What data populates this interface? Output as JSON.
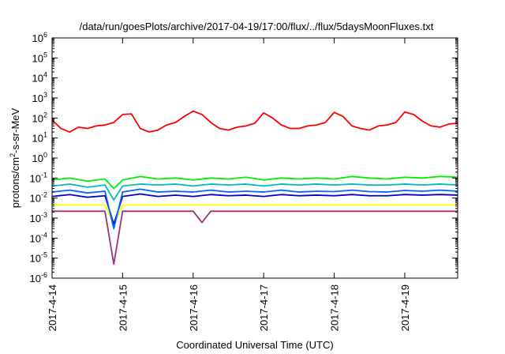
{
  "chart_data": {
    "type": "line",
    "title": "/data/run/goesPlots/archive/2017-04-19/17:00/flux/../flux/5daysMoonFluxes.txt",
    "xlabel": "Coordinated Universal Time (UTC)",
    "ylabel_parts": [
      "protons/cm",
      "2",
      "-s-sr-MeV"
    ],
    "ylabel": "protons/cm2-s-sr-MeV",
    "x_range": [
      "2017-04-14",
      "2017-04-19 18:00"
    ],
    "x_ticks": [
      "2017-4-14",
      "2017-4-15",
      "2017-4-16",
      "2017-4-17",
      "2017-4-18",
      "2017-4-19"
    ],
    "y_scale": "log",
    "ylim": [
      1e-06,
      1000000.0
    ],
    "y_ticks": [
      {
        "base": "10",
        "exp": "6"
      },
      {
        "base": "10",
        "exp": "5"
      },
      {
        "base": "10",
        "exp": "4"
      },
      {
        "base": "10",
        "exp": "3"
      },
      {
        "base": "10",
        "exp": "2"
      },
      {
        "base": "10",
        "exp": "1"
      },
      {
        "base": "10",
        "exp": "0"
      },
      {
        "base": "10",
        "exp": "-1"
      },
      {
        "base": "10",
        "exp": "-2"
      },
      {
        "base": "10",
        "exp": "-3"
      },
      {
        "base": "10",
        "exp": "-4"
      },
      {
        "base": "10",
        "exp": "-5"
      },
      {
        "base": "10",
        "exp": "-6"
      }
    ],
    "grid": false,
    "legend": false,
    "series": [
      {
        "color": "#ff0000",
        "x": [
          "2017-04-14 00:00",
          "2017-04-14 03:00",
          "2017-04-14 06:00",
          "2017-04-14 09:00",
          "2017-04-14 12:00",
          "2017-04-14 15:00",
          "2017-04-14 18:00",
          "2017-04-14 21:00",
          "2017-04-15 00:00",
          "2017-04-15 03:00",
          "2017-04-15 06:00",
          "2017-04-15 09:00",
          "2017-04-15 12:00",
          "2017-04-15 15:00",
          "2017-04-15 18:00",
          "2017-04-15 21:00",
          "2017-04-16 00:00",
          "2017-04-16 03:00",
          "2017-04-16 06:00",
          "2017-04-16 09:00",
          "2017-04-16 12:00",
          "2017-04-16 15:00",
          "2017-04-16 18:00",
          "2017-04-16 21:00",
          "2017-04-17 00:00",
          "2017-04-17 03:00",
          "2017-04-17 06:00",
          "2017-04-17 09:00",
          "2017-04-17 12:00",
          "2017-04-17 15:00",
          "2017-04-17 18:00",
          "2017-04-17 21:00",
          "2017-04-18 00:00",
          "2017-04-18 03:00",
          "2017-04-18 06:00",
          "2017-04-18 09:00",
          "2017-04-18 12:00",
          "2017-04-18 15:00",
          "2017-04-18 18:00",
          "2017-04-18 21:00",
          "2017-04-19 00:00",
          "2017-04-19 03:00",
          "2017-04-19 06:00",
          "2017-04-19 09:00",
          "2017-04-19 12:00",
          "2017-04-19 15:00",
          "2017-04-19 18:00"
        ],
        "values": [
          80,
          30,
          20,
          35,
          30,
          40,
          45,
          60,
          150,
          160,
          30,
          20,
          25,
          45,
          60,
          120,
          220,
          150,
          60,
          30,
          25,
          35,
          40,
          55,
          180,
          100,
          45,
          30,
          30,
          40,
          45,
          60,
          190,
          120,
          40,
          30,
          25,
          40,
          45,
          60,
          200,
          150,
          70,
          40,
          35,
          50,
          55
        ]
      },
      {
        "color": "#00ee00",
        "x": [
          "2017-04-14 00:00",
          "2017-04-14 06:00",
          "2017-04-14 12:00",
          "2017-04-14 18:00",
          "2017-04-14 21:00",
          "2017-04-15 00:00",
          "2017-04-15 06:00",
          "2017-04-15 12:00",
          "2017-04-15 18:00",
          "2017-04-16 00:00",
          "2017-04-16 06:00",
          "2017-04-16 12:00",
          "2017-04-16 18:00",
          "2017-04-17 00:00",
          "2017-04-17 06:00",
          "2017-04-17 12:00",
          "2017-04-17 18:00",
          "2017-04-18 00:00",
          "2017-04-18 06:00",
          "2017-04-18 12:00",
          "2017-04-18 18:00",
          "2017-04-19 00:00",
          "2017-04-19 06:00",
          "2017-04-19 12:00",
          "2017-04-19 18:00"
        ],
        "values": [
          0.08,
          0.1,
          0.07,
          0.09,
          0.03,
          0.08,
          0.12,
          0.09,
          0.1,
          0.08,
          0.1,
          0.09,
          0.11,
          0.08,
          0.1,
          0.09,
          0.1,
          0.09,
          0.12,
          0.1,
          0.09,
          0.11,
          0.1,
          0.12,
          0.11
        ]
      },
      {
        "color": "#00bbbb",
        "x": [
          "2017-04-14 00:00",
          "2017-04-14 06:00",
          "2017-04-14 12:00",
          "2017-04-14 18:00",
          "2017-04-14 21:00",
          "2017-04-15 00:00",
          "2017-04-15 06:00",
          "2017-04-15 12:00",
          "2017-04-15 18:00",
          "2017-04-16 00:00",
          "2017-04-16 06:00",
          "2017-04-16 12:00",
          "2017-04-16 18:00",
          "2017-04-17 00:00",
          "2017-04-17 06:00",
          "2017-04-17 12:00",
          "2017-04-17 18:00",
          "2017-04-18 00:00",
          "2017-04-18 06:00",
          "2017-04-18 12:00",
          "2017-04-18 18:00",
          "2017-04-19 00:00",
          "2017-04-19 06:00",
          "2017-04-19 12:00",
          "2017-04-19 18:00"
        ],
        "values": [
          0.04,
          0.05,
          0.035,
          0.045,
          0.008,
          0.04,
          0.05,
          0.045,
          0.05,
          0.04,
          0.05,
          0.045,
          0.05,
          0.04,
          0.05,
          0.045,
          0.05,
          0.045,
          0.05,
          0.045,
          0.045,
          0.05,
          0.045,
          0.05,
          0.045
        ]
      },
      {
        "color": "#0066ff",
        "x": [
          "2017-04-14 00:00",
          "2017-04-14 06:00",
          "2017-04-14 12:00",
          "2017-04-14 18:00",
          "2017-04-14 21:00",
          "2017-04-15 00:00",
          "2017-04-15 06:00",
          "2017-04-15 12:00",
          "2017-04-15 18:00",
          "2017-04-16 00:00",
          "2017-04-16 06:00",
          "2017-04-16 12:00",
          "2017-04-16 18:00",
          "2017-04-17 00:00",
          "2017-04-17 06:00",
          "2017-04-17 12:00",
          "2017-04-17 18:00",
          "2017-04-18 00:00",
          "2017-04-18 06:00",
          "2017-04-18 12:00",
          "2017-04-18 18:00",
          "2017-04-19 00:00",
          "2017-04-19 06:00",
          "2017-04-19 12:00",
          "2017-04-19 18:00"
        ],
        "values": [
          0.02,
          0.025,
          0.018,
          0.022,
          0.0003,
          0.02,
          0.028,
          0.02,
          0.022,
          0.02,
          0.025,
          0.02,
          0.022,
          0.02,
          0.025,
          0.02,
          0.022,
          0.021,
          0.025,
          0.021,
          0.02,
          0.024,
          0.022,
          0.025,
          0.022
        ]
      },
      {
        "color": "#0000cc",
        "x": [
          "2017-04-14 00:00",
          "2017-04-14 06:00",
          "2017-04-14 12:00",
          "2017-04-14 18:00",
          "2017-04-14 21:00",
          "2017-04-15 00:00",
          "2017-04-15 06:00",
          "2017-04-15 12:00",
          "2017-04-15 18:00",
          "2017-04-16 00:00",
          "2017-04-16 06:00",
          "2017-04-16 12:00",
          "2017-04-16 18:00",
          "2017-04-17 00:00",
          "2017-04-17 06:00",
          "2017-04-17 12:00",
          "2017-04-17 18:00",
          "2017-04-18 00:00",
          "2017-04-18 06:00",
          "2017-04-18 12:00",
          "2017-04-18 18:00",
          "2017-04-19 00:00",
          "2017-04-19 06:00",
          "2017-04-19 12:00",
          "2017-04-19 18:00"
        ],
        "values": [
          0.012,
          0.015,
          0.011,
          0.013,
          0.0005,
          0.012,
          0.016,
          0.012,
          0.014,
          0.012,
          0.015,
          0.013,
          0.014,
          0.012,
          0.015,
          0.013,
          0.014,
          0.013,
          0.015,
          0.013,
          0.013,
          0.015,
          0.014,
          0.015,
          0.014
        ]
      },
      {
        "color": "#ffff00",
        "x": [
          "2017-04-14 00:00",
          "2017-04-14 06:00",
          "2017-04-14 12:00",
          "2017-04-14 18:00",
          "2017-04-14 21:00",
          "2017-04-15 00:00",
          "2017-04-15 06:00",
          "2017-04-15 12:00",
          "2017-04-15 18:00",
          "2017-04-16 00:00",
          "2017-04-16 06:00",
          "2017-04-16 12:00",
          "2017-04-16 18:00",
          "2017-04-17 00:00",
          "2017-04-17 06:00",
          "2017-04-17 12:00",
          "2017-04-17 18:00",
          "2017-04-18 00:00",
          "2017-04-18 06:00",
          "2017-04-18 12:00",
          "2017-04-18 18:00",
          "2017-04-19 00:00",
          "2017-04-19 06:00",
          "2017-04-19 12:00",
          "2017-04-19 18:00"
        ],
        "values": [
          0.0045,
          0.0045,
          0.0045,
          0.0045,
          0.0005,
          0.0045,
          0.0045,
          0.0045,
          0.0045,
          0.0045,
          0.0045,
          0.0045,
          0.0045,
          0.0045,
          0.0045,
          0.0045,
          0.0045,
          0.0045,
          0.0045,
          0.0045,
          0.0045,
          0.0045,
          0.0045,
          0.0045,
          0.0045
        ]
      },
      {
        "color": "#993377",
        "x": [
          "2017-04-14 00:00",
          "2017-04-14 06:00",
          "2017-04-14 12:00",
          "2017-04-14 18:00",
          "2017-04-14 21:00",
          "2017-04-15 00:00",
          "2017-04-15 06:00",
          "2017-04-15 12:00",
          "2017-04-15 18:00",
          "2017-04-16 00:00",
          "2017-04-16 03:00",
          "2017-04-16 06:00",
          "2017-04-16 12:00",
          "2017-04-16 18:00",
          "2017-04-17 00:00",
          "2017-04-17 06:00",
          "2017-04-17 12:00",
          "2017-04-17 18:00",
          "2017-04-18 00:00",
          "2017-04-18 06:00",
          "2017-04-18 12:00",
          "2017-04-18 18:00",
          "2017-04-19 00:00",
          "2017-04-19 06:00",
          "2017-04-19 12:00",
          "2017-04-19 18:00"
        ],
        "values": [
          0.0022,
          0.0022,
          0.0022,
          0.0022,
          5e-06,
          0.0022,
          0.0022,
          0.0022,
          0.0022,
          0.0022,
          0.0006,
          0.0022,
          0.0022,
          0.0022,
          0.0022,
          0.0022,
          0.0022,
          0.0022,
          0.0022,
          0.0022,
          0.0022,
          0.0022,
          0.0022,
          0.0022,
          0.0022,
          0.0022
        ]
      }
    ]
  }
}
